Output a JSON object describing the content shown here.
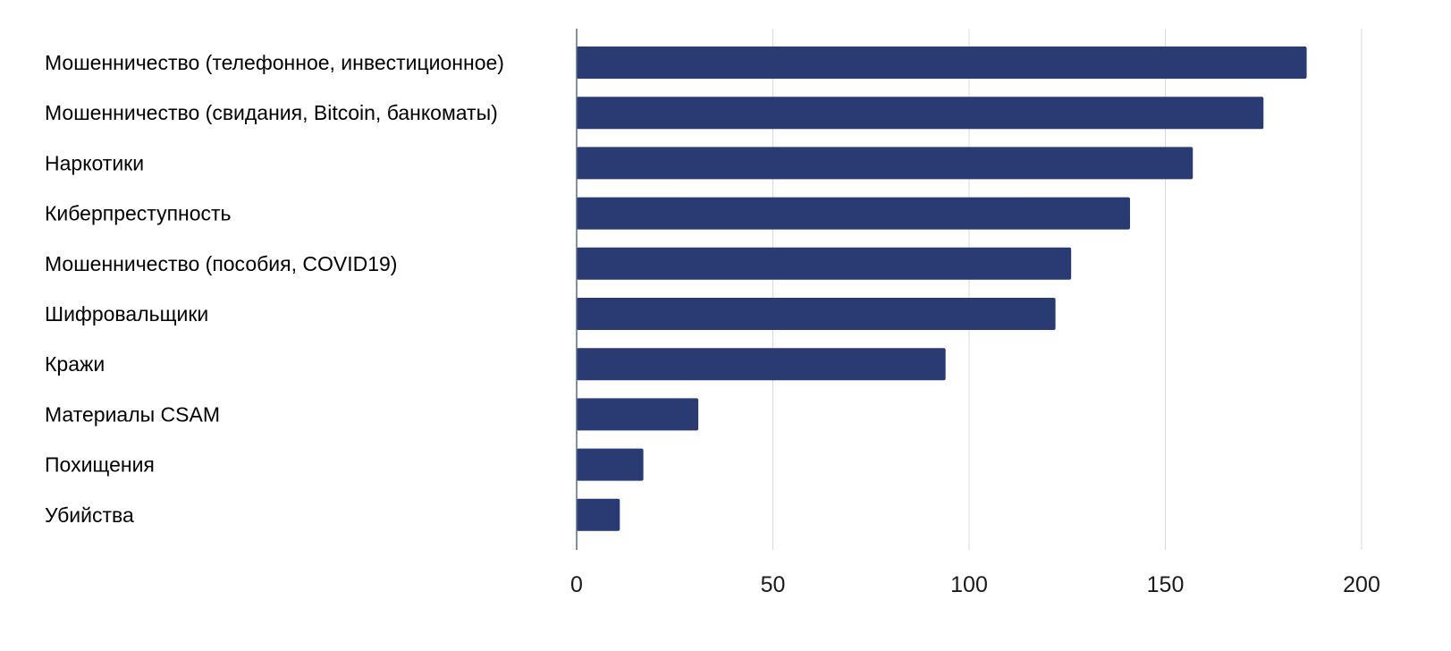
{
  "chart_data": {
    "type": "bar",
    "orientation": "horizontal",
    "title": "",
    "xlabel": "",
    "ylabel": "",
    "categories": [
      "Мошенничество (телефонное, инвестиционное)",
      "Мошенничество (свидания, Bitcoin, банкоматы)",
      "Наркотики",
      "Киберпреступность",
      "Мошенничество (пособия, COVID19)",
      "Шифровальщики",
      "Кражи",
      "Материалы CSAM",
      "Похищения",
      "Убийства"
    ],
    "values": [
      186,
      175,
      157,
      141,
      126,
      122,
      94,
      31,
      17,
      11
    ],
    "xlim": [
      0,
      200
    ],
    "xticks": [
      0,
      50,
      100,
      150,
      200
    ],
    "xtick_labels": [
      "0",
      "50",
      "100",
      "150",
      "200"
    ],
    "grid": "vertical",
    "legend": "none",
    "bar_color": "#2a3a73",
    "grid_color": "#d9d9d9",
    "axis_color": "#5a6a8a",
    "label_color": "#000000"
  }
}
